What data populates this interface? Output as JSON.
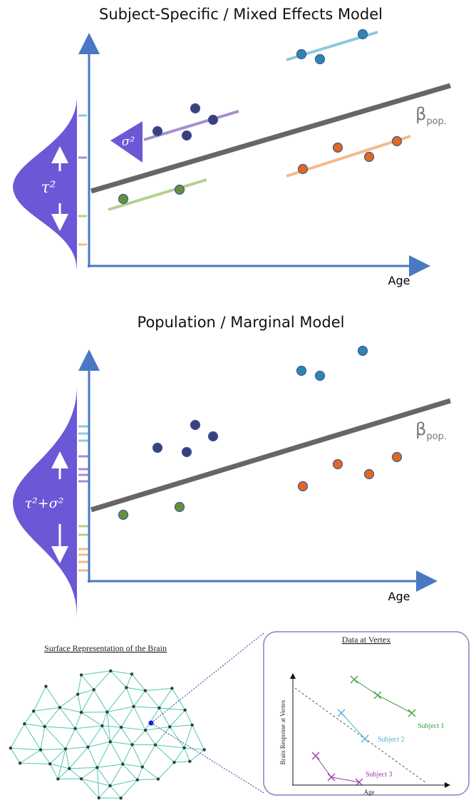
{
  "top_panel": {
    "title": "Subject-Specific / Mixed Effects Model",
    "x_label": "Age",
    "beta_symbol": "β",
    "beta_subscript": "pop.",
    "sigma_label": "σ²",
    "tau_label": "τ²"
  },
  "bottom_panel": {
    "title": "Population / Marginal Model",
    "x_label": "Age",
    "beta_symbol": "β",
    "beta_subscript": "pop.",
    "tau_label": "τ²+σ²"
  },
  "brain_panel": {
    "title": "Surface Representation of the Brain"
  },
  "vertex_panel": {
    "title": "Data at Vertex",
    "y_label": "Brain Response at Vertex",
    "x_label": "Age",
    "subjects": [
      "Subject 1",
      "Subject 2",
      "Subject 3"
    ]
  }
}
